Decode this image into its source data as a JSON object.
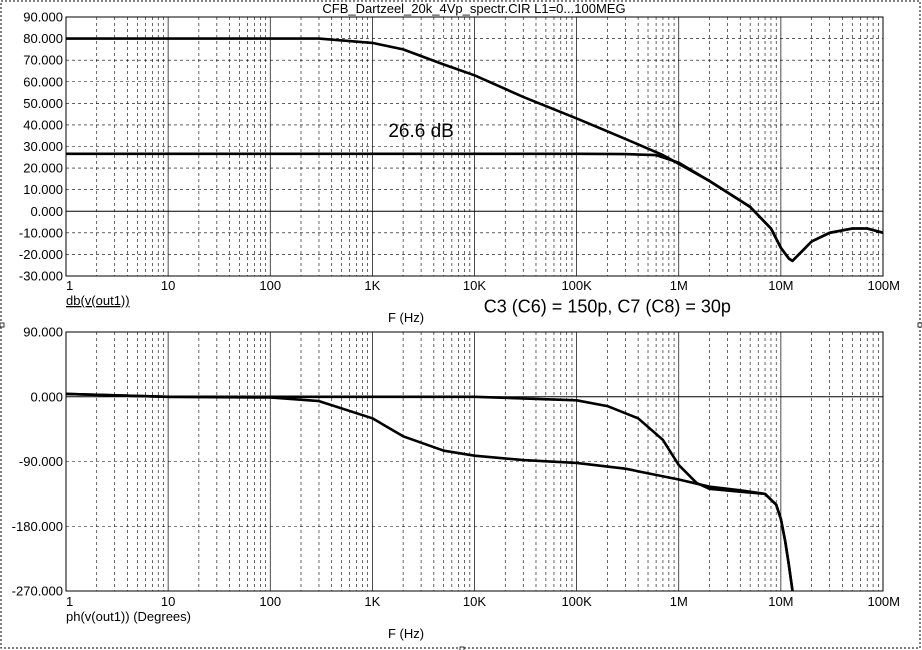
{
  "title": "CFB_Dartzeel_20k_4Vp_spectr.CIR L1=0...100MEG",
  "chart_data": [
    {
      "type": "line",
      "title": "CFB_Dartzeel_20k_4Vp_spectr.CIR L1=0...100MEG",
      "xlabel": "F (Hz)",
      "ylabel": "db(v(out1))",
      "xscale": "log",
      "xlim": [
        1,
        100000000
      ],
      "ylim": [
        -30,
        90
      ],
      "grid": true,
      "x_ticks": [
        {
          "v": 1,
          "label": "1"
        },
        {
          "v": 10,
          "label": "10"
        },
        {
          "v": 100,
          "label": "100"
        },
        {
          "v": 1000,
          "label": "1K"
        },
        {
          "v": 10000,
          "label": "10K"
        },
        {
          "v": 100000,
          "label": "100K"
        },
        {
          "v": 1000000,
          "label": "1M"
        },
        {
          "v": 10000000,
          "label": "10M"
        },
        {
          "v": 100000000,
          "label": "100M"
        }
      ],
      "y_ticks": [
        {
          "v": 90,
          "label": "90.000"
        },
        {
          "v": 80,
          "label": "80.000"
        },
        {
          "v": 70,
          "label": "70.000"
        },
        {
          "v": 60,
          "label": "60.000"
        },
        {
          "v": 50,
          "label": "50.000"
        },
        {
          "v": 40,
          "label": "40.000"
        },
        {
          "v": 30,
          "label": "30.000"
        },
        {
          "v": 20,
          "label": "20.000"
        },
        {
          "v": 10,
          "label": "10.000"
        },
        {
          "v": 0,
          "label": "0.000"
        },
        {
          "v": -10,
          "label": "-10.000"
        },
        {
          "v": -20,
          "label": "-20.000"
        },
        {
          "v": -30,
          "label": "-30.000"
        }
      ],
      "annotations": [
        {
          "text": "26.6 dB",
          "x": 3000,
          "y": 34.5
        },
        {
          "text": "C3 (C6) = 150p, C7 (C8) = 30p",
          "x": 200000,
          "y": -47
        }
      ],
      "series": [
        {
          "x": [
            1,
            10,
            100,
            300,
            1000,
            2000,
            5000,
            10000,
            30000,
            100000,
            300000,
            700000,
            1000000,
            2000000,
            5000000,
            8000000,
            10000000,
            12000000,
            13000000,
            15000000,
            20000000,
            30000000,
            50000000,
            70000000,
            100000000
          ],
          "y": [
            80,
            80,
            80,
            80,
            78,
            75,
            68,
            63,
            53,
            43,
            33.5,
            26,
            22,
            14,
            2,
            -8,
            -17,
            -22,
            -23,
            -20,
            -14,
            -10,
            -8,
            -8,
            -10
          ]
        },
        {
          "x": [
            1,
            10,
            100,
            1000,
            10000,
            100000,
            300000,
            600000,
            1000000,
            2000000,
            5000000,
            8000000,
            10000000,
            12000000,
            13000000,
            15000000,
            20000000,
            30000000,
            50000000,
            70000000,
            100000000
          ],
          "y": [
            26.6,
            26.6,
            26.6,
            26.6,
            26.6,
            26.6,
            26.5,
            26,
            22.5,
            14,
            2,
            -8,
            -17,
            -22,
            -23,
            -20,
            -14,
            -10,
            -8,
            -8,
            -10
          ]
        }
      ]
    },
    {
      "type": "line",
      "xlabel": "F (Hz)",
      "ylabel": "ph(v(out1)) (Degrees)",
      "xscale": "log",
      "xlim": [
        1,
        100000000
      ],
      "ylim": [
        -270,
        90
      ],
      "grid": true,
      "x_ticks": [
        {
          "v": 1,
          "label": "1"
        },
        {
          "v": 10,
          "label": "10"
        },
        {
          "v": 100,
          "label": "100"
        },
        {
          "v": 1000,
          "label": "1K"
        },
        {
          "v": 10000,
          "label": "10K"
        },
        {
          "v": 100000,
          "label": "100K"
        },
        {
          "v": 1000000,
          "label": "1M"
        },
        {
          "v": 10000000,
          "label": "10M"
        },
        {
          "v": 100000000,
          "label": "100M"
        }
      ],
      "y_ticks": [
        {
          "v": 90,
          "label": "90.000"
        },
        {
          "v": 0,
          "label": "0.000"
        },
        {
          "v": -90,
          "label": "-90.000"
        },
        {
          "v": -180,
          "label": "-180.000"
        },
        {
          "v": -270,
          "label": "-270.000"
        }
      ],
      "series": [
        {
          "x": [
            1,
            3,
            10,
            100,
            300,
            1000,
            2000,
            5000,
            10000,
            30000,
            100000,
            300000,
            1000000,
            2000000,
            4000000,
            7000000,
            9000000,
            10000000,
            11000000,
            12000000,
            13000000
          ],
          "y": [
            4,
            2,
            0,
            -1,
            -6,
            -30,
            -55,
            -75,
            -82,
            -88,
            -92,
            -100,
            -115,
            -125,
            -130,
            -135,
            -150,
            -170,
            -200,
            -235,
            -270
          ]
        },
        {
          "x": [
            1,
            3,
            10,
            100,
            1000,
            10000,
            100000,
            200000,
            400000,
            700000,
            1000000,
            1500000,
            2000000,
            4000000,
            7000000,
            9000000,
            10000000,
            11000000,
            12000000,
            13000000
          ],
          "y": [
            4,
            2,
            0,
            0,
            0,
            0,
            -5,
            -13,
            -30,
            -60,
            -95,
            -120,
            -128,
            -132,
            -135,
            -150,
            -170,
            -200,
            -235,
            -270
          ]
        }
      ]
    }
  ]
}
